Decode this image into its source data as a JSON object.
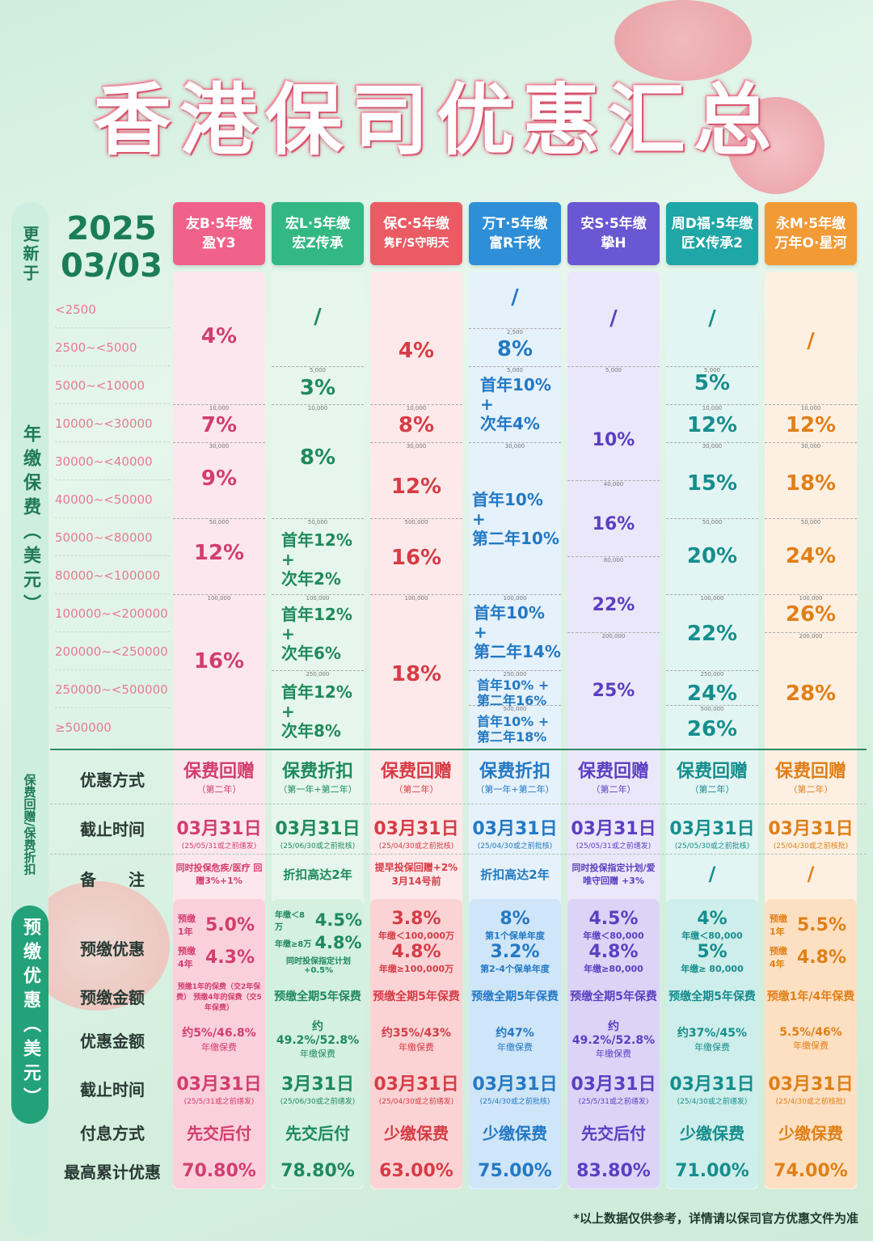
{
  "title": "香港保司优惠汇总",
  "update_label": "更新于",
  "date": {
    "year": "2025",
    "md": "03/03"
  },
  "premium_label": "年缴保费（美元）",
  "discount_label": "保费回赠/保费折扣",
  "prepay_label": "预缴优惠（美元）",
  "bands": [
    "<2500",
    "2500~<5000",
    "5000~<10000",
    "10000~<30000",
    "30000~<40000",
    "40000~<50000",
    "50000~<80000",
    "80000~<100000",
    "100000~<200000",
    "200000~<250000",
    "250000~<500000",
    "≥500000"
  ],
  "products": [
    {
      "top": "友B·5年缴",
      "name": "盈Y3",
      "color": "#f0628a"
    },
    {
      "top": "宏L·5年缴",
      "name": "宏Z传承",
      "color": "#33b884"
    },
    {
      "top": "保C·5年缴",
      "name": "隽F/S守明天",
      "color": "#ea5b63"
    },
    {
      "top": "万T·5年缴",
      "name": "富R千秋",
      "color": "#2e8fd8"
    },
    {
      "top": "安S·5年缴",
      "name": "挚H",
      "color": "#6a57d2"
    },
    {
      "top": "周D福·5年缴",
      "name": "匠X传承2",
      "color": "#1fa6a6"
    },
    {
      "top": "永M·5年缴",
      "name": "万年O·星河",
      "color": "#f29a35"
    }
  ],
  "rates": {
    "p0": [
      "4%",
      "7%",
      "9%",
      "12%",
      "16%"
    ],
    "p1": [
      "/",
      "3%",
      "8%",
      "首年12%",
      "+",
      "次年2%",
      "首年12%",
      "+",
      "次年6%",
      "首年12%",
      "+",
      "次年8%"
    ],
    "p2": [
      "4%",
      "8%",
      "12%",
      "16%",
      "18%"
    ],
    "p3": [
      "/",
      "8%",
      "首年10%",
      "+",
      "次年4%",
      "首年10%",
      "+",
      "第二年10%",
      "首年10%",
      "+",
      "第二年14%",
      "首年10% +",
      "第二年16%",
      "首年10% +",
      "第二年18%"
    ],
    "p4": [
      "/",
      "10%",
      "16%",
      "22%",
      "25%"
    ],
    "p5": [
      "/",
      "5%",
      "12%",
      "15%",
      "20%",
      "22%",
      "24%",
      "26%"
    ],
    "p6": [
      "/",
      "12%",
      "18%",
      "24%",
      "26%",
      "28%"
    ]
  },
  "ticks": {
    "t2500": "2,500",
    "t5000": "5,000",
    "t10000": "10,000",
    "t30000": "30,000",
    "t40000": "40,000",
    "t50000": "50,000",
    "t80000": "80,000",
    "t100000": "100,000",
    "t200000": "200,000",
    "t250000": "250,000",
    "t500000": "500,000"
  },
  "row_labels": {
    "method": "优惠方式",
    "deadline": "截止时间",
    "remark": "备　　注",
    "prepay": "预缴优惠",
    "prepay_amt": "预缴金额",
    "benefit_amt": "优惠金额",
    "deadline2": "截止时间",
    "pay_mode": "付息方式",
    "max": "最高累计优惠"
  },
  "method": [
    {
      "a": "保费回赠",
      "b": "（第二年）"
    },
    {
      "a": "保费折扣",
      "b": "（第一年+第二年）"
    },
    {
      "a": "保费回赠",
      "b": "（第二年）"
    },
    {
      "a": "保费折扣",
      "b": "（第一年+第二年）"
    },
    {
      "a": "保费回赠",
      "b": "（第二年）"
    },
    {
      "a": "保费回赠",
      "b": "（第二年）"
    },
    {
      "a": "保费回赠",
      "b": "（第二年）"
    }
  ],
  "deadline": [
    {
      "a": "03月31日",
      "b": "(25/05/31或之前缮发)"
    },
    {
      "a": "03月31日",
      "b": "(25/06/30或之前批核)"
    },
    {
      "a": "03月31日",
      "b": "(25/04/30或之前批核)"
    },
    {
      "a": "03月31日",
      "b": "(25/04/30或之前批核)"
    },
    {
      "a": "03月31日",
      "b": "(25/05/31或之前缮发)"
    },
    {
      "a": "03月31日",
      "b": "(25/05/30或之前批核)"
    },
    {
      "a": "03月31日",
      "b": "(25/04/30或之前核批)"
    }
  ],
  "remark": [
    "同时投保危疾/医疗 回赠3%+1%",
    "折扣高达2年",
    "提早投保回赠+2% 3月14号前",
    "折扣高达2年",
    "同时投保指定计划/爱唯守回赠 +3%",
    "/",
    "/"
  ],
  "prepay": [
    {
      "l1": "预缴1年",
      "v1": "5.0%",
      "l2": "预缴4年",
      "v2": "4.3%"
    },
    {
      "l1": "年缴＜8万",
      "v1": "4.5%",
      "l2": "年缴≥8万",
      "v2": "4.8%",
      "ex": "同时投保指定计划 +0.5%"
    },
    {
      "v1": "3.8%",
      "l1": "年缴＜100,000万",
      "v2": "4.8%",
      "l2": "年缴≥100,000万"
    },
    {
      "v1": "8%",
      "l1": "第1个保单年度",
      "v2": "3.2%",
      "l2": "第2-4个保单年度"
    },
    {
      "v1": "4.5%",
      "l1": "年缴＜80,000",
      "v2": "4.8%",
      "l2": "年缴≥80,000"
    },
    {
      "v1": "4%",
      "l1": "年缴＜80,000",
      "v2": "5%",
      "l2": "年缴≥ 80,000"
    },
    {
      "l1": "预缴1年",
      "v1": "5.5%",
      "l2": "预缴4年",
      "v2": "4.8%"
    }
  ],
  "prepay_amt": [
    "预缴1年的保费（交2年保费） 预缴4年的保费（交5年保费）",
    "预缴全期5年保费",
    "预缴全期5年保费",
    "预缴全期5年保费",
    "预缴全期5年保费",
    "预缴全期5年保费",
    "预缴1年/4年保费"
  ],
  "benefit_amt": [
    {
      "a": "约5%/46.8%",
      "b": "年缴保费"
    },
    {
      "a": "约49.2%/52.8%",
      "b": "年缴保费"
    },
    {
      "a": "约35%/43%",
      "b": "年缴保费"
    },
    {
      "a": "约47%",
      "b": "年缴保费"
    },
    {
      "a": "约49.2%/52.8%",
      "b": "年缴保费"
    },
    {
      "a": "约37%/45%",
      "b": "年缴保费"
    },
    {
      "a": "5.5%/46%",
      "b": "年缴保费"
    }
  ],
  "deadline2": [
    {
      "a": "03月31日",
      "b": "(25/5/31或之前缮发)"
    },
    {
      "a": "3月31日",
      "b": "(25/06/30或之前缮发)"
    },
    {
      "a": "03月31日",
      "b": "(25/04/30或之前缮发)"
    },
    {
      "a": "03月31日",
      "b": "(25/4/30或之前批核)"
    },
    {
      "a": "03月31日",
      "b": "(25/5/31或之前缮发)"
    },
    {
      "a": "03月31日",
      "b": "(25/4/30或之前缮发)"
    },
    {
      "a": "03月31日",
      "b": "(25/4/30或之前核批)"
    }
  ],
  "pay_mode": [
    "先交后付",
    "先交后付",
    "少缴保费",
    "少缴保费",
    "先交后付",
    "少缴保费",
    "少缴保费"
  ],
  "max": [
    "70.80%",
    "78.80%",
    "63.00%",
    "75.00%",
    "83.80%",
    "71.00%",
    "74.00%"
  ],
  "footnote": "*以上数据仅供参考，详情请以保司官方优惠文件为准"
}
